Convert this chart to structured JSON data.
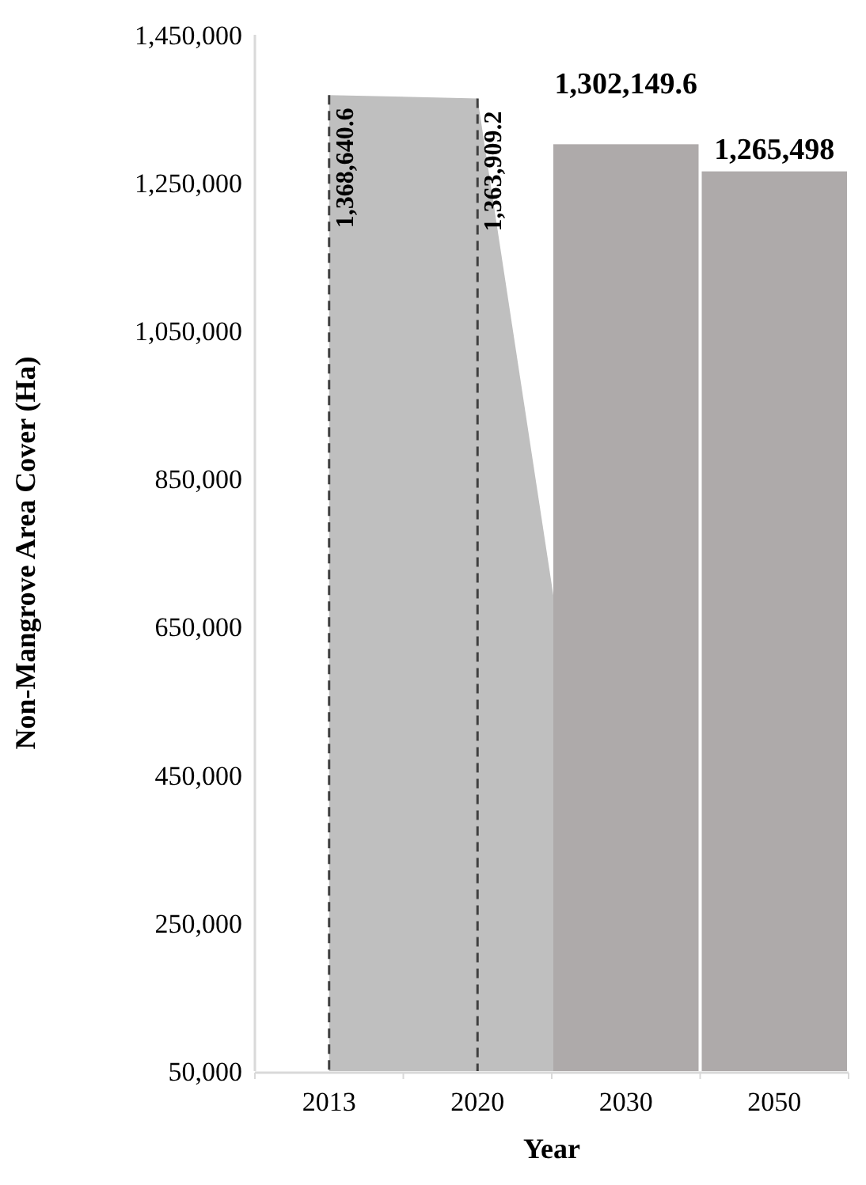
{
  "chart_data": {
    "type": "bar",
    "xlabel": "Year",
    "ylabel": "Non-Mangrove Area Cover (Ha)",
    "categories": [
      "2013",
      "2020",
      "2030",
      "2050"
    ],
    "ylim": [
      50000,
      1450000
    ],
    "yticks": [
      {
        "value": 50000,
        "label": "50,000"
      },
      {
        "value": 250000,
        "label": "250,000"
      },
      {
        "value": 450000,
        "label": "450,000"
      },
      {
        "value": 650000,
        "label": "650,000"
      },
      {
        "value": 850000,
        "label": "850,000"
      },
      {
        "value": 1050000,
        "label": "1,050,000"
      },
      {
        "value": 1250000,
        "label": "1,250,000"
      },
      {
        "value": 1450000,
        "label": "1,450,000"
      }
    ],
    "series": [
      {
        "type": "area",
        "color": "#bfbfbf",
        "values": [
          1368640.6,
          1363909.2,
          50000,
          null
        ],
        "value_labels": [
          "1,368,640.6",
          "1,363,909.2",
          null,
          null
        ]
      },
      {
        "color": "#aeaaaa",
        "values": [
          null,
          null,
          1302149.6,
          1265498
        ],
        "value_labels": [
          null,
          null,
          "1,302,149.6",
          "1,265,498"
        ]
      }
    ],
    "ref_lines": [
      {
        "axis": "x",
        "value": "2013",
        "color": "#404040",
        "line_style": "dashed"
      },
      {
        "axis": "x",
        "value": "2020",
        "color": "#404040",
        "line_style": "dashed"
      }
    ],
    "grid": false
  }
}
